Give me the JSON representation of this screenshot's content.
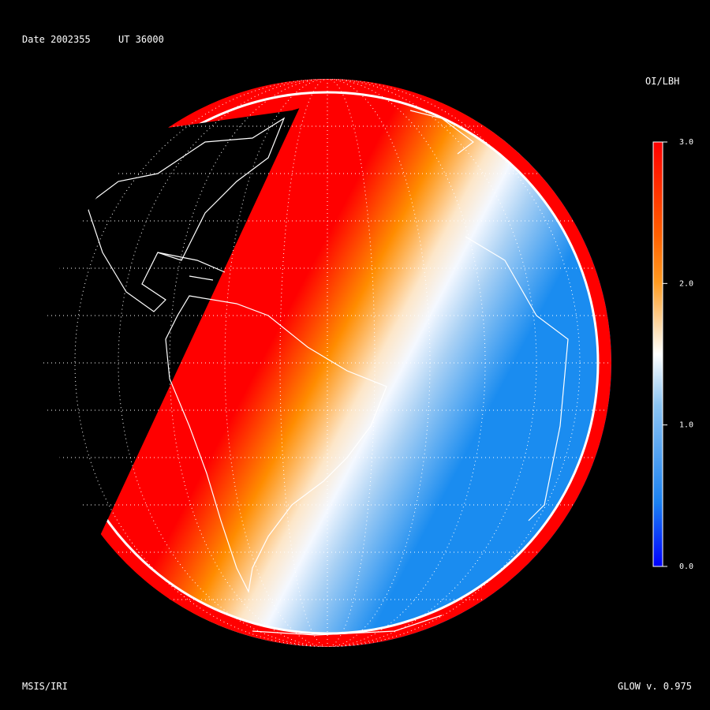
{
  "header": {
    "date": "Date 2002355",
    "ut": "UT 36000"
  },
  "colorbar": {
    "label": "OI/LBH",
    "lim": [
      0,
      3
    ],
    "ticks": [
      {
        "value": 3,
        "label": "3.0"
      },
      {
        "value": 2,
        "label": "2.0"
      },
      {
        "value": 1,
        "label": "1.0"
      },
      {
        "value": 0,
        "label": "0.0"
      }
    ]
  },
  "footer": {
    "left": "MSIS/IRI",
    "right": "GLOW v. 0.975"
  }
}
